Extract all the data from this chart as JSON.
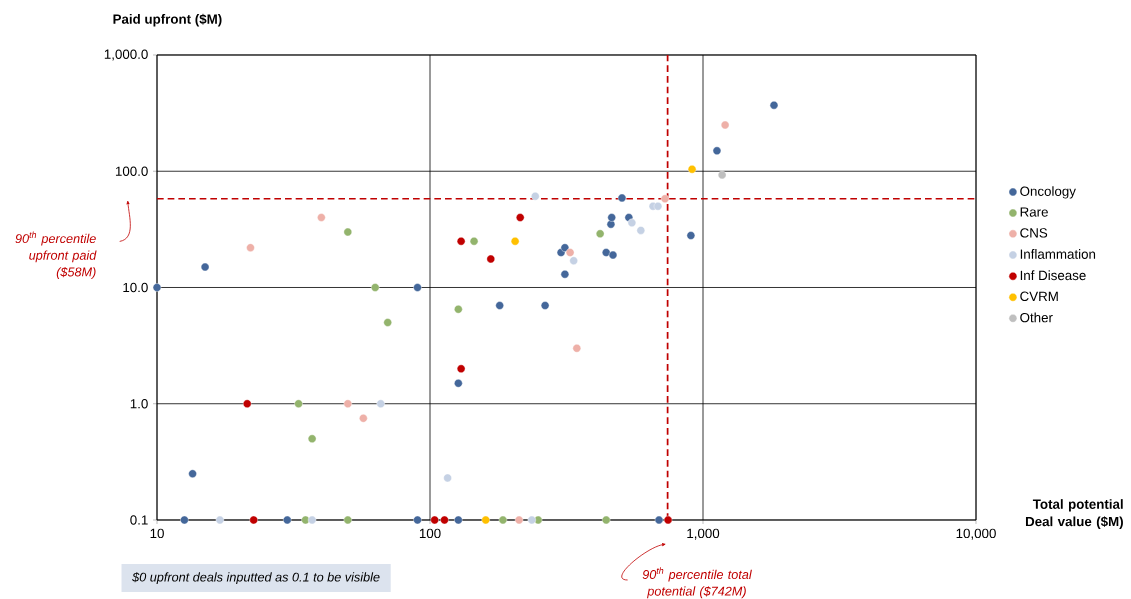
{
  "chart_data": {
    "type": "scatter",
    "xlabel": "Total potential Deal value ($M)",
    "ylabel": "Paid upfront ($M)",
    "log": "xy",
    "grid": true,
    "legend": "right",
    "marker": "circle",
    "xlim": [
      10,
      10000
    ],
    "ylim": [
      0.1,
      1000
    ],
    "xticks": [
      10,
      100,
      {
        "value": 1000,
        "label": "1,000"
      },
      {
        "value": 10000,
        "label": "10,000"
      }
    ],
    "yticks": [
      0.1,
      {
        "value": 1,
        "label": "1.0"
      },
      {
        "value": 10,
        "label": "10.0"
      },
      {
        "value": 100,
        "label": "100.0"
      },
      {
        "value": 1000,
        "label": "1,000.0"
      }
    ],
    "series": [
      {
        "name": "Oncology",
        "color": "#44679a",
        "x": [
          10,
          15,
          13.5,
          12.6,
          30,
          90,
          90,
          127,
          127,
          180,
          264,
          312,
          302,
          312,
          442,
          468,
          460,
          463,
          535,
          505,
          903,
          690,
          1125,
          1820
        ],
        "values": [
          10,
          15,
          0.25,
          0.1,
          0.1,
          10,
          0.1,
          1.5,
          0.1,
          7,
          7,
          13,
          20,
          22,
          20,
          19,
          35,
          40,
          40,
          59,
          28,
          0.1,
          150,
          370
        ]
      },
      {
        "name": "Rare",
        "color": "#93b46d",
        "x": [
          50,
          63,
          70,
          33,
          37,
          35,
          50,
          127,
          145,
          185,
          249,
          420,
          442
        ],
        "values": [
          30,
          10,
          5,
          1,
          0.5,
          0.1,
          0.1,
          6.5,
          25,
          0.1,
          0.1,
          29,
          0.1
        ]
      },
      {
        "name": "CNS",
        "color": "#eeb0a8",
        "x": [
          22,
          40,
          50,
          57,
          326,
          345,
          212,
          726,
          1205
        ],
        "values": [
          22,
          40,
          1,
          0.75,
          20,
          3,
          0.1,
          58,
          250
        ]
      },
      {
        "name": "Inflammation",
        "color": "#c5d1e4",
        "x": [
          17,
          37,
          66,
          116,
          243,
          336,
          236,
          549,
          592,
          656,
          684
        ],
        "values": [
          0.1,
          0.1,
          1,
          0.23,
          61,
          17,
          0.1,
          36,
          31,
          50,
          50
        ]
      },
      {
        "name": "Inf Disease",
        "color": "#c00000",
        "x": [
          21.4,
          22.6,
          130,
          167,
          214,
          130,
          104,
          113,
          745
        ],
        "values": [
          1,
          0.1,
          25,
          17.6,
          40,
          2,
          0.1,
          0.1,
          0.1
        ]
      },
      {
        "name": "CVRM",
        "color": "#ffc000",
        "x": [
          205,
          160,
          912
        ],
        "values": [
          25,
          0.1,
          104
        ]
      },
      {
        "name": "Other",
        "color": "#bfbfbf",
        "x": [
          1175
        ],
        "values": [
          93
        ]
      }
    ],
    "ref_lines": [
      {
        "axis": "y",
        "value": 58,
        "label": "90$^{th}$ percentile upfront paid ($58M)",
        "color": "#c00000",
        "line_style": "dashed"
      },
      {
        "axis": "x",
        "value": 742,
        "label": "90$^{th}$ percentile total potential ($742M)",
        "color": "#c00000",
        "line_style": "dashed"
      }
    ],
    "annotations": [
      "$0 upfront deals inputted as 0.1 to be visible"
    ]
  }
}
